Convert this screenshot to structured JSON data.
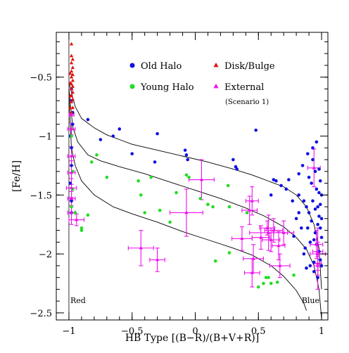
{
  "chart_data": {
    "type": "scatter",
    "xlabel": "HB Type  [(B−R)/(B+V+R)]",
    "ylabel": "[Fe/H]",
    "xlim": [
      -1.1,
      1.05
    ],
    "ylim": [
      -2.56,
      -0.12
    ],
    "xticks": [
      -1,
      -0.5,
      0,
      0.5,
      1
    ],
    "xtick_labels": [
      "−1",
      "−0.5",
      "0",
      "0.5",
      "1"
    ],
    "yticks": [
      -0.5,
      -1,
      -1.5,
      -2,
      -2.5
    ],
    "ytick_labels": [
      "−0.5",
      "−1",
      "−1.5",
      "−2",
      "−2.5"
    ],
    "grid": false,
    "legend_position": "top-right",
    "annotations": {
      "red": "Red",
      "blue": "Blue"
    },
    "legend": [
      {
        "label": "Old Halo",
        "marker": "circle",
        "color": "#1010e0"
      },
      {
        "label": "Young Halo",
        "marker": "circle",
        "color": "#22dd22"
      },
      {
        "label": "Disk/Bulge",
        "marker": "triangle",
        "color": "#e01010"
      },
      {
        "label": "External",
        "marker": "triangle",
        "color": "#ee10ee",
        "note": "(Scenario 1)"
      }
    ],
    "series": [
      {
        "name": "Old Halo",
        "marker": "circle",
        "color": "#1010e0",
        "points": [
          [
            -0.98,
            -0.6
          ],
          [
            -0.98,
            -0.7
          ],
          [
            -0.97,
            -0.8
          ],
          [
            -0.97,
            -0.9
          ],
          [
            -0.99,
            -1.0
          ],
          [
            -0.98,
            -1.1
          ],
          [
            -0.98,
            -1.25
          ],
          [
            -0.99,
            -1.4
          ],
          [
            -0.98,
            -1.55
          ],
          [
            -0.98,
            -1.65
          ],
          [
            -0.85,
            -0.86
          ],
          [
            -0.75,
            -1.03
          ],
          [
            -0.65,
            -1.0
          ],
          [
            -0.6,
            -0.94
          ],
          [
            -0.5,
            -1.15
          ],
          [
            -0.3,
            -0.98
          ],
          [
            -0.32,
            -1.22
          ],
          [
            -0.08,
            -1.12
          ],
          [
            -0.07,
            -1.16
          ],
          [
            -0.06,
            -1.2
          ],
          [
            0.3,
            -1.2
          ],
          [
            0.32,
            -1.26
          ],
          [
            0.33,
            -1.28
          ],
          [
            0.48,
            -0.95
          ],
          [
            0.62,
            -1.37
          ],
          [
            0.64,
            -1.38
          ],
          [
            0.68,
            -1.42
          ],
          [
            0.72,
            -1.45
          ],
          [
            0.74,
            -1.37
          ],
          [
            0.77,
            -1.55
          ],
          [
            0.6,
            -1.5
          ],
          [
            0.78,
            -1.85
          ],
          [
            0.82,
            -1.5
          ],
          [
            0.82,
            -1.32
          ],
          [
            0.82,
            -1.65
          ],
          [
            0.84,
            -1.78
          ],
          [
            0.86,
            -2.0
          ],
          [
            0.86,
            -1.55
          ],
          [
            0.87,
            -1.95
          ],
          [
            0.88,
            -1.6
          ],
          [
            0.89,
            -1.15
          ],
          [
            0.89,
            -1.78
          ],
          [
            0.9,
            -1.35
          ],
          [
            0.9,
            -1.65
          ],
          [
            0.91,
            -1.9
          ],
          [
            0.91,
            -2.1
          ],
          [
            0.92,
            -1.4
          ],
          [
            0.92,
            -1.72
          ],
          [
            0.93,
            -1.2
          ],
          [
            0.93,
            -1.55
          ],
          [
            0.94,
            -1.88
          ],
          [
            0.94,
            -2.07
          ],
          [
            0.95,
            -1.3
          ],
          [
            0.95,
            -1.62
          ],
          [
            0.95,
            -1.82
          ],
          [
            0.96,
            -1.45
          ],
          [
            0.96,
            -1.92
          ],
          [
            0.97,
            -1.6
          ],
          [
            0.97,
            -1.75
          ],
          [
            0.97,
            -2.2
          ],
          [
            0.98,
            -1.28
          ],
          [
            0.98,
            -1.48
          ],
          [
            0.98,
            -1.68
          ],
          [
            0.98,
            -1.98
          ],
          [
            0.99,
            -1.38
          ],
          [
            0.99,
            -1.58
          ],
          [
            0.99,
            -1.78
          ],
          [
            0.99,
            -2.05
          ],
          [
            1.0,
            -1.5
          ],
          [
            1.0,
            -1.7
          ],
          [
            1.0,
            -1.86
          ],
          [
            1.0,
            -2.1
          ],
          [
            0.96,
            -1.05
          ],
          [
            0.85,
            -1.25
          ],
          [
            0.93,
            -1.1
          ],
          [
            0.88,
            -2.12
          ],
          [
            0.8,
            -1.7
          ],
          [
            0.94,
            -2.15
          ]
        ]
      },
      {
        "name": "Young Halo",
        "marker": "circle",
        "color": "#22dd22",
        "points": [
          [
            -0.98,
            -1.0
          ],
          [
            -0.97,
            -1.3
          ],
          [
            -0.97,
            -1.45
          ],
          [
            -0.98,
            -1.6
          ],
          [
            -0.82,
            -1.22
          ],
          [
            -0.9,
            -1.78
          ],
          [
            -0.9,
            -1.8
          ],
          [
            -0.95,
            -1.65
          ],
          [
            -0.85,
            -1.67
          ],
          [
            -0.78,
            -1.16
          ],
          [
            -0.7,
            -1.35
          ],
          [
            -0.45,
            -1.38
          ],
          [
            -0.43,
            -1.5
          ],
          [
            -0.35,
            -1.35
          ],
          [
            -0.4,
            -1.65
          ],
          [
            -0.28,
            -1.63
          ],
          [
            -0.2,
            -1.73
          ],
          [
            -0.15,
            -1.48
          ],
          [
            -0.07,
            -1.33
          ],
          [
            -0.05,
            -1.35
          ],
          [
            0.04,
            -1.53
          ],
          [
            0.1,
            -1.58
          ],
          [
            0.14,
            -1.6
          ],
          [
            0.16,
            -2.06
          ],
          [
            0.26,
            -1.42
          ],
          [
            0.27,
            -1.6
          ],
          [
            0.27,
            -1.99
          ],
          [
            0.41,
            -1.65
          ],
          [
            0.5,
            -2.28
          ],
          [
            0.54,
            -2.25
          ],
          [
            0.58,
            -2.2
          ],
          [
            0.6,
            -2.25
          ],
          [
            0.65,
            -2.24
          ],
          [
            0.78,
            -2.18
          ],
          [
            0.1,
            -1.58
          ],
          [
            0.56,
            -2.2
          ]
        ]
      },
      {
        "name": "Disk/Bulge",
        "marker": "triangle",
        "color": "#e01010",
        "points": [
          [
            -0.98,
            -0.22
          ],
          [
            -0.98,
            -0.32
          ],
          [
            -0.97,
            -0.35
          ],
          [
            -0.98,
            -0.38
          ],
          [
            -0.97,
            -0.42
          ],
          [
            -0.98,
            -0.45
          ],
          [
            -0.97,
            -0.48
          ],
          [
            -0.98,
            -0.5
          ],
          [
            -0.97,
            -0.53
          ],
          [
            -0.98,
            -0.56
          ],
          [
            -0.97,
            -0.58
          ],
          [
            -0.98,
            -0.6
          ],
          [
            -0.97,
            -0.63
          ],
          [
            -0.98,
            -0.66
          ],
          [
            -0.97,
            -0.69
          ],
          [
            -0.98,
            -0.71
          ],
          [
            -0.99,
            -0.76
          ],
          [
            -0.97,
            -0.76
          ],
          [
            -0.98,
            -0.8
          ],
          [
            -0.99,
            -0.47
          ],
          [
            -0.99,
            -0.55
          ],
          [
            -0.99,
            -0.66
          ]
        ]
      },
      {
        "name": "External",
        "marker": "triangle",
        "color": "#ee10ee",
        "points": [
          {
            "x": -0.98,
            "y": -0.82,
            "xerr": 0.02,
            "yerr": 0
          },
          {
            "x": -0.98,
            "y": -0.94,
            "xerr": 0.03,
            "yerr": 0.05
          },
          {
            "x": -0.98,
            "y": -1.17,
            "xerr": 0.03,
            "yerr": 0.08
          },
          {
            "x": -0.98,
            "y": -1.31,
            "xerr": 0.03,
            "yerr": 0.1
          },
          {
            "x": -0.98,
            "y": -1.44,
            "xerr": 0.04,
            "yerr": 0.08
          },
          {
            "x": -0.98,
            "y": -1.53,
            "xerr": 0.03,
            "yerr": 0.06
          },
          {
            "x": -0.98,
            "y": -1.65,
            "xerr": 0.03,
            "yerr": 0.1
          },
          {
            "x": -0.94,
            "y": -1.71,
            "xerr": 0.06,
            "yerr": 0.05
          },
          {
            "x": -0.43,
            "y": -1.95,
            "xerr": 0.1,
            "yerr": 0.15
          },
          {
            "x": -0.3,
            "y": -2.05,
            "xerr": 0.06,
            "yerr": 0.1
          },
          {
            "x": -0.07,
            "y": -1.65,
            "xerr": 0.13,
            "yerr": 0.2
          },
          {
            "x": 0.05,
            "y": -1.37,
            "xerr": 0.1,
            "yerr": 0.17
          },
          {
            "x": 0.37,
            "y": -1.87,
            "xerr": 0.08,
            "yerr": 0.1
          },
          {
            "x": 0.43,
            "y": -1.63,
            "xerr": 0.06,
            "yerr": 0.12
          },
          {
            "x": 0.45,
            "y": -1.55,
            "xerr": 0.05,
            "yerr": 0.12
          },
          {
            "x": 0.46,
            "y": -2.04,
            "xerr": 0.08,
            "yerr": 0.12
          },
          {
            "x": 0.45,
            "y": -2.16,
            "xerr": 0.06,
            "yerr": 0.12
          },
          {
            "x": 0.52,
            "y": -1.86,
            "xerr": 0.07,
            "yerr": 0.1
          },
          {
            "x": 0.57,
            "y": -1.78,
            "xerr": 0.06,
            "yerr": 0.06
          },
          {
            "x": 0.58,
            "y": -1.82,
            "xerr": 0.15,
            "yerr": 0.15
          },
          {
            "x": 0.6,
            "y": -1.88,
            "xerr": 0.07,
            "yerr": 0.1
          },
          {
            "x": 0.62,
            "y": -1.8,
            "xerr": 0.07,
            "yerr": 0.1
          },
          {
            "x": 0.66,
            "y": -1.93,
            "xerr": 0.05,
            "yerr": 0.12
          },
          {
            "x": 0.67,
            "y": -2.1,
            "xerr": 0.08,
            "yerr": 0.1
          },
          {
            "x": 0.7,
            "y": -1.82,
            "xerr": 0.08,
            "yerr": 0.1
          },
          {
            "x": 0.94,
            "y": -1.27,
            "xerr": 0.05,
            "yerr": 0.16
          },
          {
            "x": 0.96,
            "y": -1.92,
            "xerr": 0.05,
            "yerr": 0.12
          },
          {
            "x": 0.97,
            "y": -1.98,
            "xerr": 0.04,
            "yerr": 0.2
          },
          {
            "x": 0.97,
            "y": -2.1,
            "xerr": 0.03,
            "yerr": 0.2
          },
          {
            "x": 0.97,
            "y": -2.0,
            "xerr": 0.06,
            "yerr": 0.08
          },
          {
            "x": 0.97,
            "y": -2.08,
            "xerr": 0.03,
            "yerr": 0.06
          }
        ]
      }
    ],
    "curves": [
      {
        "points": [
          [
            -1.0,
            -0.55
          ],
          [
            -0.95,
            -0.75
          ],
          [
            -0.9,
            -0.85
          ],
          [
            -0.8,
            -0.93
          ],
          [
            -0.7,
            -0.99
          ],
          [
            -0.6,
            -1.03
          ],
          [
            -0.5,
            -1.07
          ],
          [
            -0.3,
            -1.12
          ],
          [
            -0.1,
            -1.17
          ],
          [
            0.1,
            -1.22
          ],
          [
            0.3,
            -1.28
          ],
          [
            0.45,
            -1.33
          ],
          [
            0.6,
            -1.39
          ],
          [
            0.7,
            -1.43
          ],
          [
            0.8,
            -1.5
          ],
          [
            0.88,
            -1.6
          ],
          [
            0.94,
            -1.75
          ],
          [
            0.98,
            -1.95
          ],
          [
            1.0,
            -2.3
          ]
        ]
      },
      {
        "points": [
          [
            -1.0,
            -0.6
          ],
          [
            -0.97,
            -0.92
          ],
          [
            -0.93,
            -1.05
          ],
          [
            -0.85,
            -1.16
          ],
          [
            -0.75,
            -1.21
          ],
          [
            -0.6,
            -1.26
          ],
          [
            -0.4,
            -1.32
          ],
          [
            -0.2,
            -1.39
          ],
          [
            0.0,
            -1.46
          ],
          [
            0.2,
            -1.53
          ],
          [
            0.4,
            -1.61
          ],
          [
            0.55,
            -1.68
          ],
          [
            0.7,
            -1.77
          ],
          [
            0.8,
            -1.86
          ],
          [
            0.88,
            -1.96
          ],
          [
            0.94,
            -2.1
          ],
          [
            0.98,
            -2.3
          ],
          [
            1.0,
            -2.55
          ]
        ]
      },
      {
        "points": [
          [
            -1.0,
            -0.65
          ],
          [
            -0.98,
            -1.1
          ],
          [
            -0.95,
            -1.25
          ],
          [
            -0.9,
            -1.38
          ],
          [
            -0.8,
            -1.5
          ],
          [
            -0.65,
            -1.6
          ],
          [
            -0.5,
            -1.66
          ],
          [
            -0.3,
            -1.73
          ],
          [
            -0.1,
            -1.81
          ],
          [
            0.1,
            -1.88
          ],
          [
            0.3,
            -1.95
          ],
          [
            0.45,
            -2.01
          ],
          [
            0.6,
            -2.1
          ],
          [
            0.7,
            -2.19
          ],
          [
            0.8,
            -2.31
          ],
          [
            0.86,
            -2.42
          ],
          [
            0.88,
            -2.48
          ]
        ]
      }
    ]
  }
}
